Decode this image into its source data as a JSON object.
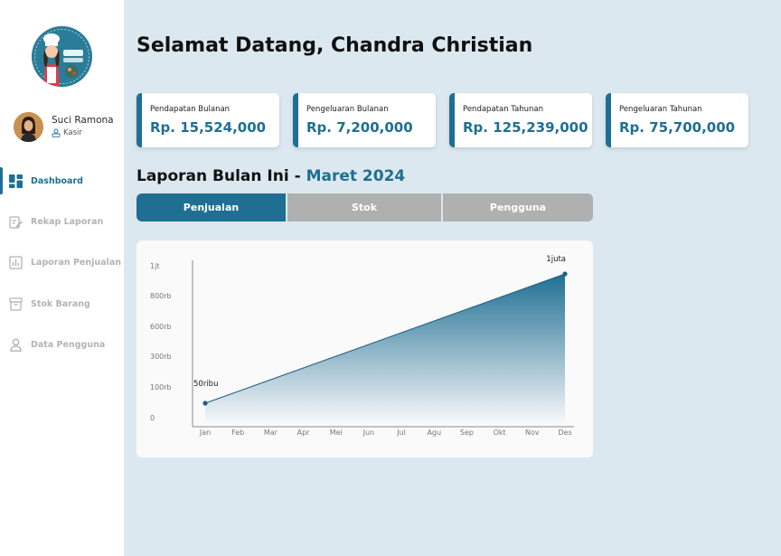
{
  "sidebar": {
    "profile": {
      "name": "Suci Ramona",
      "role": "Kasir"
    },
    "nav": [
      {
        "label": "Dashboard",
        "icon": "dashboard-grid-icon",
        "active": true
      },
      {
        "label": "Rekap Laporan",
        "icon": "edit-report-icon",
        "active": false
      },
      {
        "label": "Laporan Penjualan",
        "icon": "bar-chart-icon",
        "active": false
      },
      {
        "label": "Stok Barang",
        "icon": "archive-box-icon",
        "active": false
      },
      {
        "label": "Data Pengguna",
        "icon": "user-icon",
        "active": false
      }
    ]
  },
  "header": {
    "welcome": "Selamat Datang, Chandra Christian"
  },
  "cards": [
    {
      "label": "Pendapatan Bulanan",
      "value": "Rp. 15,524,000"
    },
    {
      "label": "Pengeluaran Bulanan",
      "value": "Rp. 7,200,000"
    },
    {
      "label": "Pendapatan Tahunan",
      "value": "Rp. 125,239,000"
    },
    {
      "label": "Pengeluaran Tahunan",
      "value": "Rp. 75,700,000"
    }
  ],
  "report": {
    "title_prefix": "Laporan Bulan Ini - ",
    "month": "Maret 2024",
    "tabs": [
      {
        "label": "Penjualan",
        "active": true
      },
      {
        "label": "Stok",
        "active": false
      },
      {
        "label": "Pengguna",
        "active": false
      }
    ]
  },
  "colors": {
    "accent": "#1f6f93",
    "tab_inactive": "#b0b0b0",
    "background": "#dce8ef"
  },
  "chart_data": {
    "type": "area",
    "x": [
      "Jan",
      "Feb",
      "Mar",
      "Apr",
      "Mei",
      "Jun",
      "Jul",
      "Agu",
      "Sep",
      "Okt",
      "Nov",
      "Des"
    ],
    "y_ticks": [
      "0",
      "100rb",
      "300rb",
      "600rb",
      "800rb",
      "1jt"
    ],
    "points": [
      {
        "x": "Jan",
        "label": "50ribu"
      },
      {
        "x": "Des",
        "label": "1juta"
      }
    ],
    "grid": false,
    "legend": "none"
  }
}
